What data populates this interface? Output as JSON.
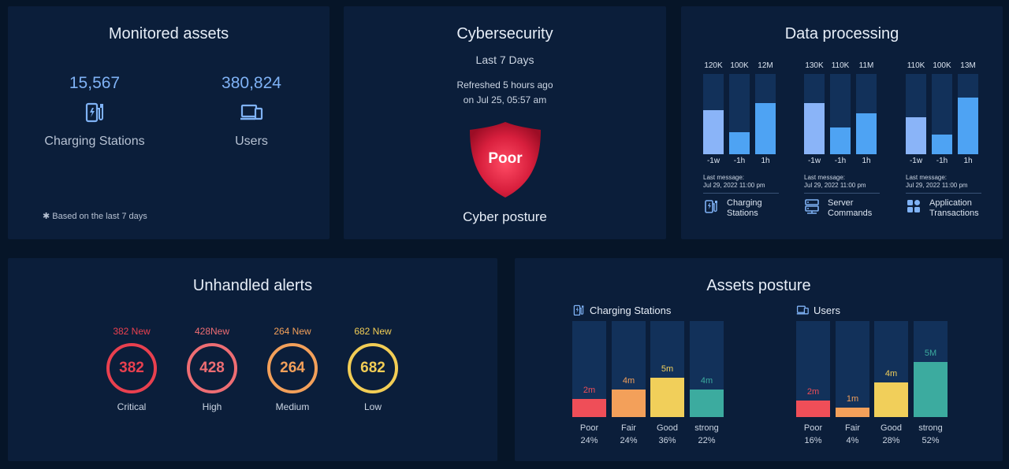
{
  "monitored_assets": {
    "title": "Monitored assets",
    "charging": {
      "value": "15,567",
      "label": "Charging Stations",
      "icon": "charging-station-icon"
    },
    "users": {
      "value": "380,824",
      "label": "Users",
      "icon": "devices-icon"
    },
    "footnote": "✱ Based on the last 7 days"
  },
  "cybersecurity": {
    "title": "Cybersecurity",
    "period": "Last 7 Days",
    "refreshed": "Refreshed 5 hours ago",
    "refreshed_on": "on Jul 25, 05:57 am",
    "badge": "Poor",
    "footer": "Cyber posture"
  },
  "data_processing": {
    "title": "Data processing",
    "groups": [
      {
        "bars": [
          {
            "label": "120K",
            "tick": "-1w",
            "level": 0.55
          },
          {
            "label": "100K",
            "tick": "-1h",
            "level": 0.27
          },
          {
            "label": "12M",
            "tick": "1h",
            "level": 0.64
          }
        ],
        "msg_label": "Last message:",
        "msg_time": "Jul 29, 2022 11:00 pm",
        "legend_l1": "Charging",
        "legend_l2": "Stations",
        "icon": "charging-station-icon"
      },
      {
        "bars": [
          {
            "label": "130K",
            "tick": "-1w",
            "level": 0.64
          },
          {
            "label": "110K",
            "tick": "-1h",
            "level": 0.33
          },
          {
            "label": "11M",
            "tick": "1h",
            "level": 0.51
          }
        ],
        "msg_label": "Last message:",
        "msg_time": "Jul 29, 2022 11:00 pm",
        "legend_l1": "Server",
        "legend_l2": "Commands",
        "icon": "server-icon"
      },
      {
        "bars": [
          {
            "label": "110K",
            "tick": "-1w",
            "level": 0.46
          },
          {
            "label": "100K",
            "tick": "-1h",
            "level": 0.25
          },
          {
            "label": "13M",
            "tick": "1h",
            "level": 0.71
          }
        ],
        "msg_label": "Last message:",
        "msg_time": "Jul 29, 2022 11:00 pm",
        "legend_l1": "Application",
        "legend_l2": "Transactions",
        "icon": "apps-icon"
      }
    ],
    "colors": [
      "#8ab4f8",
      "#4ea3f3",
      "#4ea3f3"
    ]
  },
  "alerts": {
    "title": "Unhandled alerts",
    "items": [
      {
        "new": "382 New",
        "value": "382",
        "label": "Critical",
        "color": "#e9404f"
      },
      {
        "new": "428New",
        "value": "428",
        "label": "High",
        "color": "#ee6d73"
      },
      {
        "new": "264 New",
        "value": "264",
        "label": "Medium",
        "color": "#f3a05a"
      },
      {
        "new": "682 New",
        "value": "682",
        "label": "Low",
        "color": "#f2cd55"
      }
    ]
  },
  "assets_posture": {
    "title": "Assets posture",
    "colors": [
      "#ef4e58",
      "#f3a05a",
      "#f1cf5a",
      "#3cab9f"
    ],
    "charts": [
      {
        "name": "Charging Stations",
        "icon": "charging-station-icon",
        "bars": [
          {
            "cat": "Poor",
            "pct": "24%",
            "val": "2m",
            "level": 0.19
          },
          {
            "cat": "Fair",
            "pct": "24%",
            "val": "4m",
            "level": 0.29
          },
          {
            "cat": "Good",
            "pct": "36%",
            "val": "5m",
            "level": 0.41
          },
          {
            "cat": "strong",
            "pct": "22%",
            "val": "4m",
            "level": 0.29
          }
        ]
      },
      {
        "name": "Users",
        "icon": "devices-icon",
        "bars": [
          {
            "cat": "Poor",
            "pct": "16%",
            "val": "2m",
            "level": 0.17
          },
          {
            "cat": "Fair",
            "pct": "4%",
            "val": "1m",
            "level": 0.1
          },
          {
            "cat": "Good",
            "pct": "28%",
            "val": "4m",
            "level": 0.36
          },
          {
            "cat": "strong",
            "pct": "52%",
            "val": "5M",
            "level": 0.57
          }
        ]
      }
    ]
  }
}
